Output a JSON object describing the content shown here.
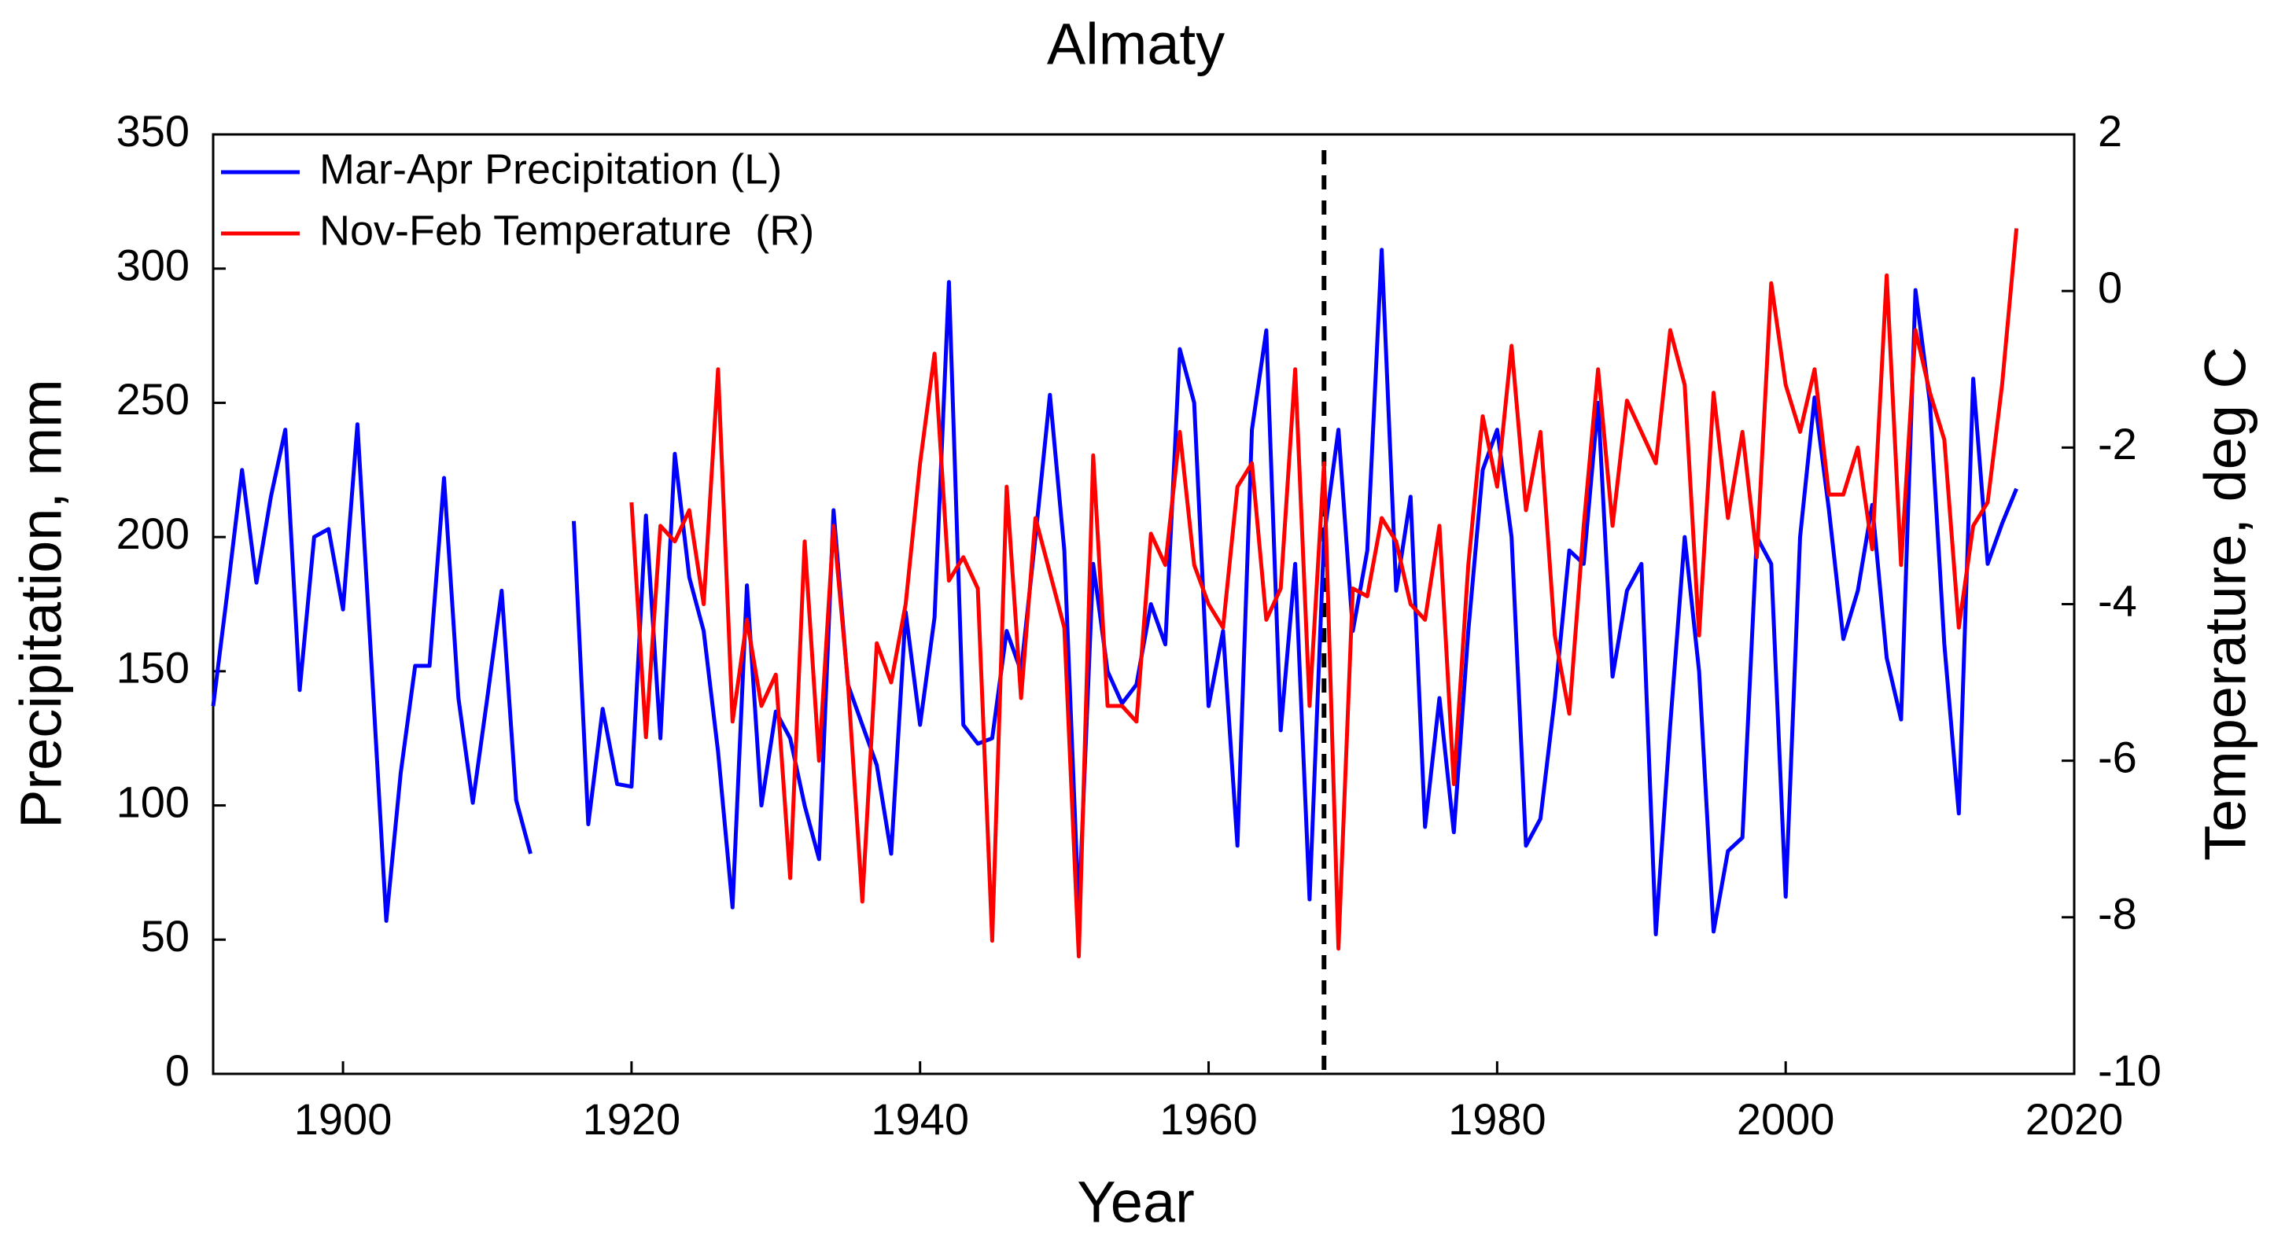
{
  "chart_data": {
    "type": "line",
    "title": "Almaty",
    "xlabel": "Year",
    "ylabel": "Precipitation, mm",
    "y2label": "Temperature, deg C",
    "x": [
      1891,
      1892,
      1893,
      1894,
      1895,
      1896,
      1897,
      1898,
      1899,
      1900,
      1901,
      1902,
      1903,
      1904,
      1905,
      1906,
      1907,
      1908,
      1909,
      1910,
      1911,
      1912,
      1913,
      1914,
      1915,
      1916,
      1917,
      1918,
      1919,
      1920,
      1921,
      1922,
      1923,
      1924,
      1925,
      1926,
      1927,
      1928,
      1929,
      1930,
      1931,
      1932,
      1933,
      1934,
      1935,
      1936,
      1937,
      1938,
      1939,
      1940,
      1941,
      1942,
      1943,
      1944,
      1945,
      1946,
      1947,
      1948,
      1949,
      1950,
      1951,
      1952,
      1953,
      1954,
      1955,
      1956,
      1957,
      1958,
      1959,
      1960,
      1961,
      1962,
      1963,
      1964,
      1965,
      1966,
      1967,
      1968,
      1969,
      1970,
      1971,
      1972,
      1973,
      1974,
      1975,
      1976,
      1977,
      1978,
      1979,
      1980,
      1981,
      1982,
      1983,
      1984,
      1985,
      1986,
      1987,
      1988,
      1989,
      1990,
      1991,
      1992,
      1993,
      1994,
      1995,
      1996,
      1997,
      1998,
      1999,
      2000,
      2001,
      2002,
      2003,
      2004,
      2005,
      2006,
      2007,
      2008,
      2009,
      2010,
      2011,
      2012,
      2013,
      2014,
      2015,
      2016
    ],
    "series": [
      {
        "name": "Mar-Apr Precipitation (L)",
        "color": "#0000ff",
        "axis": "y",
        "values": [
          137,
          180,
          225,
          183,
          215,
          240,
          143,
          200,
          203,
          173,
          242,
          150,
          57,
          112,
          152,
          152,
          222,
          140,
          101,
          140,
          180,
          102,
          82,
          null,
          null,
          206,
          93,
          136,
          108,
          107,
          208,
          125,
          231,
          185,
          165,
          120,
          62,
          182,
          100,
          135,
          125,
          100,
          80,
          210,
          145,
          130,
          115,
          82,
          172,
          130,
          170,
          295,
          130,
          123,
          125,
          165,
          150,
          200,
          253,
          195,
          60,
          190,
          150,
          138,
          145,
          175,
          160,
          270,
          250,
          137,
          165,
          85,
          240,
          277,
          128,
          190,
          65,
          200,
          240,
          165,
          195,
          307,
          180,
          215,
          92,
          140,
          90,
          165,
          225,
          240,
          200,
          85,
          95,
          140,
          195,
          190,
          250,
          148,
          180,
          190,
          52,
          130,
          200,
          150,
          53,
          83,
          88,
          200,
          190,
          66,
          200,
          252,
          210,
          162,
          180,
          212,
          155,
          132,
          292,
          250,
          160,
          97,
          259,
          190,
          205,
          218
        ]
      },
      {
        "name": "Nov-Feb Temperature  (R)",
        "color": "#ff0000",
        "axis": "y2",
        "values": [
          null,
          null,
          null,
          null,
          null,
          null,
          null,
          null,
          null,
          null,
          null,
          null,
          null,
          null,
          null,
          null,
          null,
          null,
          null,
          null,
          null,
          null,
          null,
          null,
          null,
          null,
          null,
          null,
          null,
          -2.7,
          -5.7,
          -3,
          -3.2,
          -2.8,
          -4,
          -1,
          -5.5,
          -4.2,
          -5.3,
          -4.9,
          -7.5,
          -3.2,
          -6,
          -3,
          -5,
          -7.8,
          -4.5,
          -5,
          -4,
          -2.2,
          -0.8,
          -3.7,
          -3.4,
          -3.8,
          -8.3,
          -2.5,
          -5.2,
          -2.9,
          -3.6,
          -4.3,
          -8.5,
          -2.1,
          -5.3,
          -5.3,
          -5.5,
          -3.1,
          -3.5,
          -1.8,
          -3.5,
          -4,
          -4.3,
          -2.5,
          -2.2,
          -4.2,
          -3.8,
          -1,
          -5.3,
          -2.2,
          -8.4,
          -3.8,
          -3.9,
          -2.9,
          -3.2,
          -4,
          -4.2,
          -3,
          -6.3,
          -3.5,
          -1.6,
          -2.5,
          -0.7,
          -2.8,
          -1.8,
          -4.4,
          -5.4,
          -3,
          -1,
          -3,
          -1.4,
          -1.8,
          -2.2,
          -0.5,
          -1.2,
          -4.4,
          -1.3,
          -2.9,
          -1.8,
          -3.4,
          0.1,
          -1.2,
          -1.8,
          -1,
          -2.6,
          -2.6,
          -2,
          -3.3,
          0.2,
          -3.5,
          -0.5,
          -1.3,
          -1.9,
          -4.3,
          -3,
          -2.7,
          -1.2,
          0.8
        ]
      }
    ],
    "xlim": [
      1891,
      2020
    ],
    "xticks": [
      1900,
      1920,
      1940,
      1960,
      1980,
      2000,
      2020
    ],
    "ylim": [
      0,
      350
    ],
    "yticks": [
      0,
      50,
      100,
      150,
      200,
      250,
      300,
      350
    ],
    "y2lim": [
      -10,
      2
    ],
    "y2ticks": [
      -10,
      -8,
      -6,
      -4,
      -2,
      0,
      2
    ],
    "vline_x": 1968,
    "vline_color": "#000000",
    "legend": "upper left"
  }
}
